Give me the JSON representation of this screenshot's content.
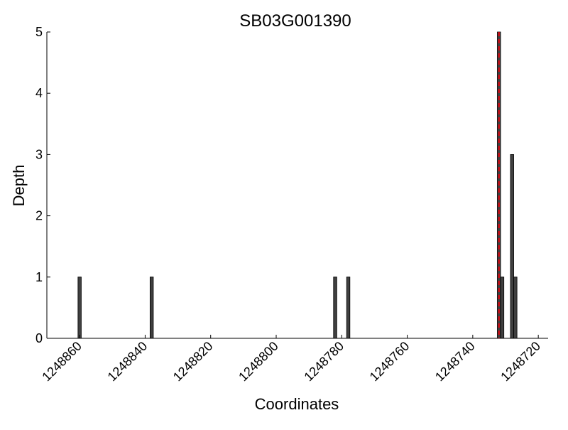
{
  "chart_data": {
    "type": "bar",
    "title": "SB03G001390",
    "xlabel": "Coordinates",
    "ylabel": "Depth",
    "x_reversed": true,
    "xlim": [
      1248870,
      1248717
    ],
    "ylim": [
      0,
      5
    ],
    "xticks": [
      1248860,
      1248840,
      1248820,
      1248800,
      1248780,
      1248760,
      1248740,
      1248720
    ],
    "yticks": [
      0,
      1,
      2,
      3,
      4,
      5
    ],
    "bars": [
      {
        "x": 1248860,
        "value": 1
      },
      {
        "x": 1248838,
        "value": 1
      },
      {
        "x": 1248782,
        "value": 1
      },
      {
        "x": 1248778,
        "value": 1
      },
      {
        "x": 1248732,
        "value": 5
      },
      {
        "x": 1248731,
        "value": 1
      },
      {
        "x": 1248728,
        "value": 3
      },
      {
        "x": 1248727,
        "value": 1
      }
    ],
    "marker_line": {
      "x": 1248732,
      "style": "dashed",
      "color": "#e8000b"
    },
    "bar_color": "#404040",
    "grid": false,
    "legend": "none"
  }
}
